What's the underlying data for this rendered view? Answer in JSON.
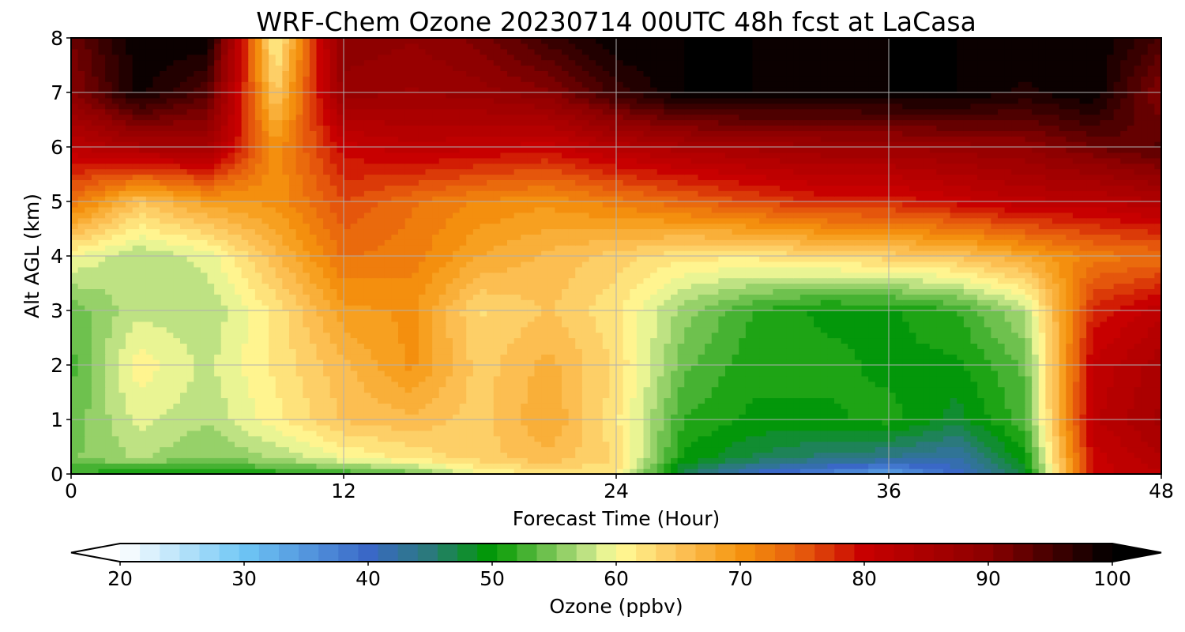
{
  "chart_data": {
    "type": "heatmap",
    "title": "WRF-Chem Ozone  20230714 00UTC 48h fcst at LaCasa",
    "xlabel": "Forecast Time (Hour)",
    "ylabel": "Alt AGL (km)",
    "xlim": [
      0,
      48
    ],
    "ylim": [
      0,
      8
    ],
    "x_ticks": [
      0,
      12,
      24,
      36,
      48
    ],
    "y_ticks": [
      0,
      1,
      2,
      3,
      4,
      5,
      6,
      7,
      8
    ],
    "grid": true,
    "colorbar": {
      "label": "Ozone  (ppbv)",
      "min": 20,
      "max": 100,
      "ticks": [
        20,
        30,
        40,
        50,
        60,
        70,
        80,
        90,
        100
      ],
      "extend": "both",
      "color_stops": [
        {
          "value": 20,
          "color": "#ffffff"
        },
        {
          "value": 30,
          "color": "#6ec6f5"
        },
        {
          "value": 40,
          "color": "#3a68c7"
        },
        {
          "value": 45,
          "color": "#2a7a7a"
        },
        {
          "value": 50,
          "color": "#009900"
        },
        {
          "value": 55,
          "color": "#7dc659"
        },
        {
          "value": 58,
          "color": "#c8e68a"
        },
        {
          "value": 60,
          "color": "#fffd99"
        },
        {
          "value": 65,
          "color": "#fdc45a"
        },
        {
          "value": 70,
          "color": "#f5940e"
        },
        {
          "value": 75,
          "color": "#e65a0c"
        },
        {
          "value": 80,
          "color": "#c80000"
        },
        {
          "value": 90,
          "color": "#8c0000"
        },
        {
          "value": 100,
          "color": "#000000"
        }
      ]
    },
    "times": [
      0,
      3,
      6,
      9,
      12,
      15,
      18,
      21,
      24,
      27,
      30,
      33,
      36,
      39,
      42,
      45,
      48
    ],
    "altitudes": [
      0,
      0.3,
      1,
      2,
      3,
      4,
      5,
      6,
      7,
      8
    ],
    "values": [
      [
        52,
        50,
        50,
        51,
        52,
        54,
        60,
        62,
        62,
        46,
        40,
        37,
        33,
        40,
        48,
        80,
        82
      ],
      [
        55,
        57,
        55,
        57,
        60,
        62,
        64,
        66,
        63,
        50,
        47,
        45,
        44,
        42,
        50,
        80,
        84
      ],
      [
        54,
        59,
        57,
        61,
        65,
        66,
        64,
        68,
        62,
        52,
        50,
        50,
        51,
        48,
        53,
        82,
        86
      ],
      [
        53,
        61,
        58,
        62,
        66,
        70,
        64,
        67,
        63,
        54,
        51,
        51,
        50,
        50,
        54,
        81,
        85
      ],
      [
        54,
        58,
        57,
        62,
        69,
        70,
        63,
        65,
        62,
        56,
        52,
        50,
        50,
        52,
        57,
        78,
        82
      ],
      [
        60,
        57,
        59,
        66,
        73,
        72,
        68,
        66,
        64,
        62,
        62,
        63,
        64,
        65,
        68,
        72,
        73
      ],
      [
        73,
        65,
        69,
        70,
        76,
        73,
        71,
        70,
        72,
        74,
        76,
        78,
        78,
        80,
        82,
        82,
        84
      ],
      [
        82,
        85,
        86,
        70,
        80,
        82,
        81,
        80,
        83,
        85,
        86,
        87,
        87,
        88,
        89,
        92,
        94
      ],
      [
        90,
        99,
        94,
        64,
        88,
        87,
        88,
        90,
        96,
        100,
        100,
        99,
        100,
        100,
        98,
        100,
        90
      ],
      [
        92,
        100,
        100,
        60,
        90,
        89,
        91,
        96,
        100,
        100,
        100,
        100,
        100,
        100,
        100,
        100,
        95
      ]
    ]
  }
}
